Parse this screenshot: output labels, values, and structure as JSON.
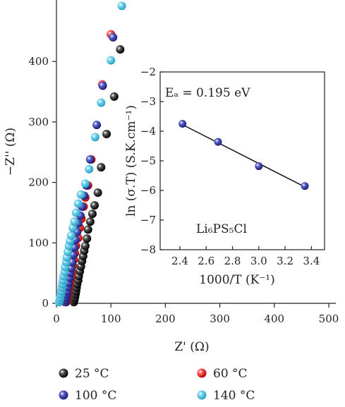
{
  "chart_data": [
    {
      "type": "scatter",
      "xlabel": "Z' (Ω)",
      "ylabel": "−Z'' (Ω)",
      "xlim": [
        0,
        500
      ],
      "ylim": [
        0,
        500
      ],
      "x_ticks": [
        "0",
        "100",
        "200",
        "300",
        "400",
        "500"
      ],
      "y_ticks": [
        "0",
        "100",
        "200",
        "300",
        "400"
      ],
      "legend_position": "bottom",
      "series": [
        {
          "name": "25 °C",
          "color": "#111111",
          "points": [
            [
              32,
              2
            ],
            [
              33,
              6
            ],
            [
              34,
              10
            ],
            [
              35,
              15
            ],
            [
              36,
              20
            ],
            [
              37,
              26
            ],
            [
              38,
              32
            ],
            [
              40,
              38
            ],
            [
              41,
              45
            ],
            [
              43,
              53
            ],
            [
              45,
              61
            ],
            [
              47,
              70
            ],
            [
              49,
              78
            ],
            [
              51,
              87
            ],
            [
              53,
              95
            ],
            [
              56,
              107
            ],
            [
              58,
              122
            ],
            [
              62,
              135
            ],
            [
              66,
              148
            ],
            [
              70,
              162
            ],
            [
              76,
              183
            ],
            [
              82,
              225
            ],
            [
              92,
              280
            ],
            [
              106,
              342
            ],
            [
              117,
              420
            ]
          ]
        },
        {
          "name": "60 °C",
          "color": "#e02020",
          "points": [
            [
              18,
              2
            ],
            [
              19,
              6
            ],
            [
              20,
              10
            ],
            [
              21,
              15
            ],
            [
              22,
              20
            ],
            [
              23,
              26
            ],
            [
              24,
              32
            ],
            [
              25,
              38
            ],
            [
              27,
              45
            ],
            [
              28,
              53
            ],
            [
              30,
              62
            ],
            [
              32,
              72
            ],
            [
              34,
              83
            ],
            [
              36,
              95
            ],
            [
              40,
              108
            ],
            [
              43,
              125
            ],
            [
              46,
              140
            ],
            [
              50,
              160
            ],
            [
              53,
              175
            ],
            [
              58,
              195
            ],
            [
              64,
              238
            ],
            [
              84,
              362
            ],
            [
              100,
              445
            ]
          ]
        },
        {
          "name": "100 °C",
          "color": "#3a3fa0",
          "points": [
            [
              16,
              2
            ],
            [
              17,
              6
            ],
            [
              18,
              10
            ],
            [
              19,
              15
            ],
            [
              20,
              20
            ],
            [
              21,
              27
            ],
            [
              22,
              34
            ],
            [
              24,
              42
            ],
            [
              25,
              50
            ],
            [
              27,
              58
            ],
            [
              29,
              68
            ],
            [
              31,
              80
            ],
            [
              33,
              92
            ],
            [
              35,
              105
            ],
            [
              38,
              118
            ],
            [
              40,
              132
            ],
            [
              44,
              145
            ],
            [
              47,
              160
            ],
            [
              51,
              178
            ],
            [
              55,
              195
            ],
            [
              62,
              238
            ],
            [
              74,
              295
            ],
            [
              85,
              360
            ],
            [
              104,
              440
            ]
          ]
        },
        {
          "name": "140 °C",
          "color": "#5cc6e0",
          "points": [
            [
              5,
              2
            ],
            [
              6,
              6
            ],
            [
              7,
              10
            ],
            [
              8,
              15
            ],
            [
              9,
              20
            ],
            [
              10,
              26
            ],
            [
              11,
              32
            ],
            [
              12,
              38
            ],
            [
              13,
              45
            ],
            [
              15,
              52
            ],
            [
              16,
              60
            ],
            [
              18,
              68
            ],
            [
              19,
              76
            ],
            [
              21,
              85
            ],
            [
              23,
              95
            ],
            [
              25,
              103
            ],
            [
              27,
              112
            ],
            [
              30,
              125
            ],
            [
              33,
              135
            ],
            [
              36,
              150
            ],
            [
              40,
              165
            ],
            [
              45,
              180
            ],
            [
              53,
              198
            ],
            [
              60,
              222
            ],
            [
              71,
              275
            ],
            [
              82,
              332
            ],
            [
              100,
              402
            ],
            [
              120,
              492
            ]
          ]
        }
      ]
    },
    {
      "type": "line",
      "xlabel": "1000/T (K⁻¹)",
      "ylabel": "ln (σ.T) (S.K.cm⁻¹)",
      "xlim": [
        2.25,
        3.5
      ],
      "ylim": [
        -8,
        -2
      ],
      "x_ticks": [
        "2.4",
        "2.6",
        "2.8",
        "3.0",
        "3.2",
        "3.4"
      ],
      "y_ticks": [
        "−2",
        "−3",
        "−4",
        "−5",
        "−6",
        "−7",
        "−8"
      ],
      "annotation": "Eₐ = 0.195 eV",
      "label": "Li₆PS₅Cl",
      "points": [
        [
          2.42,
          -3.75
        ],
        [
          2.69,
          -4.36
        ],
        [
          3.0,
          -5.18
        ],
        [
          3.35,
          -5.85
        ]
      ],
      "fit": [
        [
          2.42,
          -3.78
        ],
        [
          3.35,
          -5.88
        ]
      ],
      "marker_color": "#3a3fa0"
    }
  ]
}
